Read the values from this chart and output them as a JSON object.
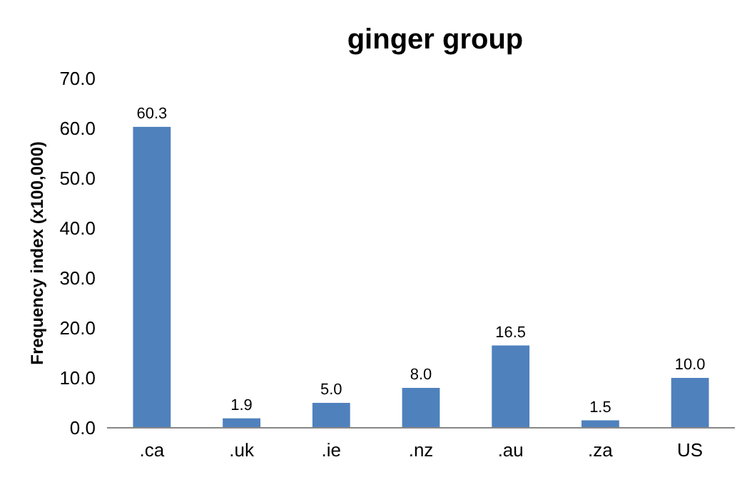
{
  "chart_data": {
    "type": "bar",
    "title": "ginger group",
    "ylabel": "Frequency index (x100,000)",
    "categories": [
      ".ca",
      ".uk",
      ".ie",
      ".nz",
      ".au",
      ".za",
      "US"
    ],
    "values": [
      60.3,
      1.9,
      5.0,
      8.0,
      16.5,
      1.5,
      10.0
    ],
    "value_labels": [
      "60.3",
      "1.9",
      "5.0",
      "8.0",
      "16.5",
      "1.5",
      "10.0"
    ],
    "color": "#4f81bd",
    "ylim": [
      0,
      70
    ],
    "yticks": [
      {
        "value": 0,
        "label": "0.0"
      },
      {
        "value": 10,
        "label": "10.0"
      },
      {
        "value": 20,
        "label": "20.0"
      },
      {
        "value": 30,
        "label": "30.0"
      },
      {
        "value": 40,
        "label": "40.0"
      },
      {
        "value": 50,
        "label": "50.0"
      },
      {
        "value": 60,
        "label": "60.0"
      },
      {
        "value": 70,
        "label": "70.0"
      }
    ],
    "grid": false
  }
}
